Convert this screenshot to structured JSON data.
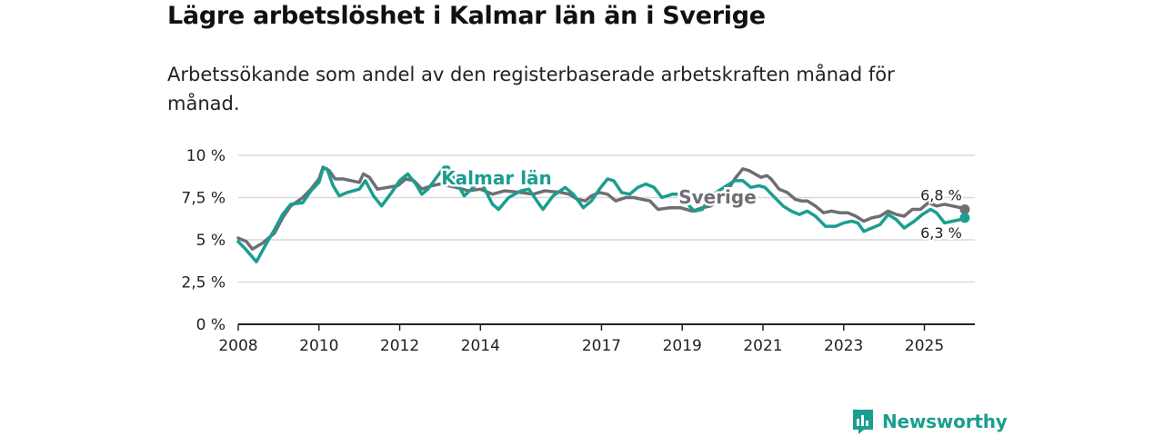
{
  "header": {
    "title": "Lägre arbetslöshet i Kalmar län än i Sverige",
    "subtitle": "Arbetssökande som andel av den registerbaserade arbetskraften månad för månad."
  },
  "brand": {
    "name": "Newsworthy"
  },
  "colors": {
    "kalmar": "#1a9e8f",
    "sverige": "#6e6e73",
    "grid": "#d9d9d9",
    "axis": "#222222"
  },
  "chart_data": {
    "type": "line",
    "title": "Lägre arbetslöshet i Kalmar län än i Sverige",
    "subtitle": "Arbetssökande som andel av den registerbaserade arbetskraften månad för månad.",
    "xlabel": "",
    "ylabel": "",
    "ylim": [
      0,
      10
    ],
    "xlim": [
      2008.0,
      2026.25
    ],
    "y_ticks": [
      0,
      2.5,
      5,
      7.5,
      10
    ],
    "y_tick_labels": [
      "0 %",
      "2,5 %",
      "5 %",
      "7,5 %",
      "10 %"
    ],
    "x_ticks": [
      2008,
      2010,
      2012,
      2014,
      2017,
      2019,
      2021,
      2023,
      2025
    ],
    "x_tick_labels": [
      "2008",
      "2010",
      "2012",
      "2014",
      "2017",
      "2019",
      "2021",
      "2023",
      "2025"
    ],
    "grid": true,
    "series": [
      {
        "name": "Sverige",
        "label": "Sverige",
        "end_label": "6,8 %",
        "points": [
          [
            2008.0,
            5.1
          ],
          [
            2008.2,
            4.9
          ],
          [
            2008.35,
            4.45
          ],
          [
            2008.6,
            4.8
          ],
          [
            2008.9,
            5.4
          ],
          [
            2009.1,
            6.3
          ],
          [
            2009.3,
            7.0
          ],
          [
            2009.6,
            7.5
          ],
          [
            2009.8,
            8.0
          ],
          [
            2010.0,
            8.6
          ],
          [
            2010.1,
            9.3
          ],
          [
            2010.25,
            9.1
          ],
          [
            2010.4,
            8.6
          ],
          [
            2010.6,
            8.6
          ],
          [
            2010.8,
            8.5
          ],
          [
            2011.0,
            8.4
          ],
          [
            2011.1,
            8.9
          ],
          [
            2011.25,
            8.7
          ],
          [
            2011.45,
            8.0
          ],
          [
            2011.7,
            8.1
          ],
          [
            2011.95,
            8.2
          ],
          [
            2012.15,
            8.6
          ],
          [
            2012.35,
            8.5
          ],
          [
            2012.55,
            8.0
          ],
          [
            2012.8,
            8.2
          ],
          [
            2013.0,
            8.3
          ],
          [
            2013.4,
            8.1
          ],
          [
            2013.7,
            7.9
          ],
          [
            2014.0,
            8.0
          ],
          [
            2014.3,
            7.7
          ],
          [
            2014.6,
            7.9
          ],
          [
            2015.0,
            7.8
          ],
          [
            2015.3,
            7.7
          ],
          [
            2015.6,
            7.9
          ],
          [
            2016.0,
            7.8
          ],
          [
            2016.2,
            7.7
          ],
          [
            2016.4,
            7.4
          ],
          [
            2016.6,
            7.3
          ],
          [
            2016.75,
            7.6
          ],
          [
            2016.95,
            7.8
          ],
          [
            2017.15,
            7.7
          ],
          [
            2017.35,
            7.3
          ],
          [
            2017.6,
            7.5
          ],
          [
            2017.8,
            7.5
          ],
          [
            2018.0,
            7.4
          ],
          [
            2018.2,
            7.3
          ],
          [
            2018.4,
            6.8
          ],
          [
            2018.7,
            6.9
          ],
          [
            2018.95,
            6.9
          ],
          [
            2019.1,
            6.8
          ],
          [
            2019.25,
            6.7
          ],
          [
            2019.5,
            6.9
          ],
          [
            2019.7,
            7.0
          ],
          [
            2019.9,
            7.3
          ],
          [
            2020.1,
            7.8
          ],
          [
            2020.3,
            8.6
          ],
          [
            2020.5,
            9.2
          ],
          [
            2020.65,
            9.1
          ],
          [
            2020.8,
            8.9
          ],
          [
            2020.95,
            8.7
          ],
          [
            2021.1,
            8.8
          ],
          [
            2021.2,
            8.6
          ],
          [
            2021.4,
            8.0
          ],
          [
            2021.6,
            7.8
          ],
          [
            2021.8,
            7.4
          ],
          [
            2021.95,
            7.3
          ],
          [
            2022.1,
            7.3
          ],
          [
            2022.3,
            7.0
          ],
          [
            2022.5,
            6.6
          ],
          [
            2022.7,
            6.7
          ],
          [
            2022.9,
            6.6
          ],
          [
            2023.1,
            6.6
          ],
          [
            2023.3,
            6.4
          ],
          [
            2023.5,
            6.1
          ],
          [
            2023.7,
            6.3
          ],
          [
            2023.9,
            6.4
          ],
          [
            2024.1,
            6.7
          ],
          [
            2024.3,
            6.5
          ],
          [
            2024.5,
            6.4
          ],
          [
            2024.7,
            6.8
          ],
          [
            2024.9,
            6.8
          ],
          [
            2025.1,
            7.2
          ],
          [
            2025.3,
            7.0
          ],
          [
            2025.5,
            7.1
          ],
          [
            2025.7,
            7.0
          ],
          [
            2025.9,
            6.9
          ],
          [
            2026.0,
            6.8
          ]
        ]
      },
      {
        "name": "Kalmar län",
        "label": "Kalmar län",
        "end_label": "6,3 %",
        "points": [
          [
            2008.0,
            4.9
          ],
          [
            2008.2,
            4.4
          ],
          [
            2008.45,
            3.7
          ],
          [
            2008.7,
            4.8
          ],
          [
            2008.9,
            5.6
          ],
          [
            2009.1,
            6.5
          ],
          [
            2009.3,
            7.1
          ],
          [
            2009.6,
            7.2
          ],
          [
            2009.8,
            7.9
          ],
          [
            2010.0,
            8.4
          ],
          [
            2010.1,
            9.2
          ],
          [
            2010.2,
            9.2
          ],
          [
            2010.35,
            8.2
          ],
          [
            2010.5,
            7.6
          ],
          [
            2010.7,
            7.8
          ],
          [
            2010.85,
            7.9
          ],
          [
            2011.0,
            8.0
          ],
          [
            2011.15,
            8.5
          ],
          [
            2011.35,
            7.6
          ],
          [
            2011.55,
            7.0
          ],
          [
            2011.8,
            7.8
          ],
          [
            2012.0,
            8.5
          ],
          [
            2012.2,
            8.9
          ],
          [
            2012.4,
            8.3
          ],
          [
            2012.55,
            7.7
          ],
          [
            2012.7,
            8.0
          ],
          [
            2013.1,
            9.3
          ],
          [
            2013.2,
            9.3
          ],
          [
            2013.6,
            7.6
          ],
          [
            2014.0,
            8.5
          ],
          [
            2014.3,
            7.1
          ],
          [
            2014.45,
            6.8
          ],
          [
            2014.7,
            7.5
          ],
          [
            2015.0,
            7.9
          ],
          [
            2015.2,
            8.0
          ],
          [
            2015.4,
            7.3
          ],
          [
            2015.55,
            6.8
          ],
          [
            2015.8,
            7.6
          ],
          [
            2016.1,
            8.1
          ],
          [
            2016.3,
            7.7
          ],
          [
            2016.55,
            6.9
          ],
          [
            2016.75,
            7.3
          ],
          [
            2016.95,
            8.0
          ],
          [
            2017.15,
            8.6
          ],
          [
            2017.3,
            8.5
          ],
          [
            2017.5,
            7.8
          ],
          [
            2017.7,
            7.7
          ],
          [
            2017.9,
            8.1
          ],
          [
            2018.1,
            8.3
          ],
          [
            2018.3,
            8.1
          ],
          [
            2018.5,
            7.5
          ],
          [
            2018.75,
            7.7
          ],
          [
            2018.9,
            7.7
          ],
          [
            2019.3,
            6.7
          ],
          [
            2019.5,
            6.8
          ],
          [
            2019.7,
            7.6
          ],
          [
            2019.9,
            7.9
          ],
          [
            2020.1,
            8.2
          ],
          [
            2020.3,
            8.5
          ],
          [
            2020.5,
            8.5
          ],
          [
            2020.7,
            8.1
          ],
          [
            2020.9,
            8.2
          ],
          [
            2021.05,
            8.1
          ],
          [
            2021.25,
            7.6
          ],
          [
            2021.5,
            7.0
          ],
          [
            2021.7,
            6.7
          ],
          [
            2021.9,
            6.5
          ],
          [
            2022.1,
            6.7
          ],
          [
            2022.3,
            6.4
          ],
          [
            2022.55,
            5.8
          ],
          [
            2022.8,
            5.8
          ],
          [
            2023.0,
            6.0
          ],
          [
            2023.2,
            6.1
          ],
          [
            2023.35,
            6.0
          ],
          [
            2023.5,
            5.5
          ],
          [
            2023.7,
            5.7
          ],
          [
            2023.9,
            5.9
          ],
          [
            2024.1,
            6.5
          ],
          [
            2024.3,
            6.2
          ],
          [
            2024.5,
            5.7
          ],
          [
            2024.75,
            6.1
          ],
          [
            2024.95,
            6.5
          ],
          [
            2025.15,
            6.8
          ],
          [
            2025.3,
            6.6
          ],
          [
            2025.5,
            6.0
          ],
          [
            2025.7,
            6.1
          ],
          [
            2025.9,
            6.2
          ],
          [
            2026.0,
            6.3
          ]
        ]
      }
    ]
  }
}
